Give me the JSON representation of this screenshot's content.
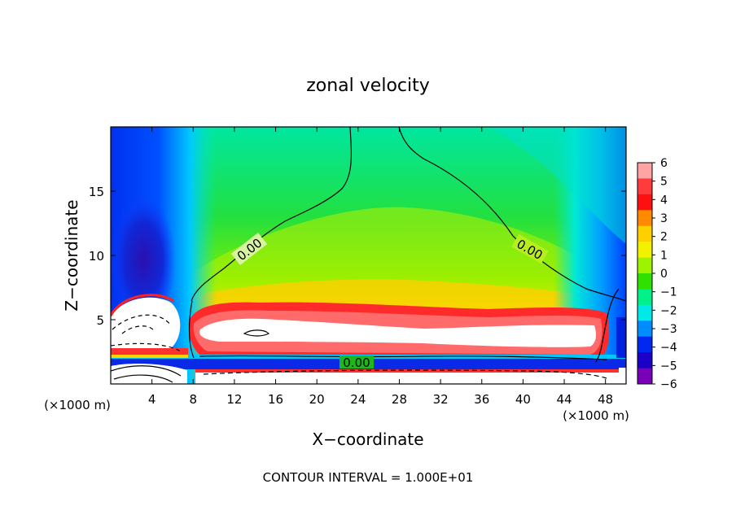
{
  "chart_data": {
    "type": "heatmap",
    "title": "zonal velocity",
    "xlabel": "X−coordinate",
    "ylabel": "Z−coordinate",
    "x_unit_left": "(×1000 m)",
    "x_unit_right": "(×1000 m)",
    "xlim": [
      0,
      50
    ],
    "ylim": [
      0,
      20
    ],
    "x_ticks": [
      4,
      8,
      12,
      16,
      20,
      24,
      28,
      32,
      36,
      40,
      44,
      48
    ],
    "y_ticks": [
      5,
      10,
      15
    ],
    "colorbar": {
      "ticks": [
        6,
        5,
        4,
        3,
        2,
        1,
        0,
        -1,
        -2,
        -3,
        -4,
        -5,
        -6
      ],
      "tick_labels": [
        "6",
        "5",
        "4",
        "3",
        "2",
        "1",
        "0",
        "−1",
        "−2",
        "−3",
        "−4",
        "−5",
        "−6"
      ],
      "colors": [
        "#ffa3a3",
        "#ff3b3b",
        "#ff1010",
        "#ff8a00",
        "#ffcf00",
        "#f2f200",
        "#9ef400",
        "#2fe000",
        "#00f08a",
        "#00e8e8",
        "#008cff",
        "#0028ee",
        "#1a00c8",
        "#7a00b8"
      ]
    },
    "contour_labels": [
      {
        "text": "0.00",
        "x": 13.5,
        "z": 10.0
      },
      {
        "text": "0.00",
        "x": 41.0,
        "z": 10.5
      },
      {
        "text": "0.00",
        "x": 24.0,
        "z": 1.8
      }
    ],
    "footer": "CONTOUR INTERVAL = 1.000E+01"
  }
}
